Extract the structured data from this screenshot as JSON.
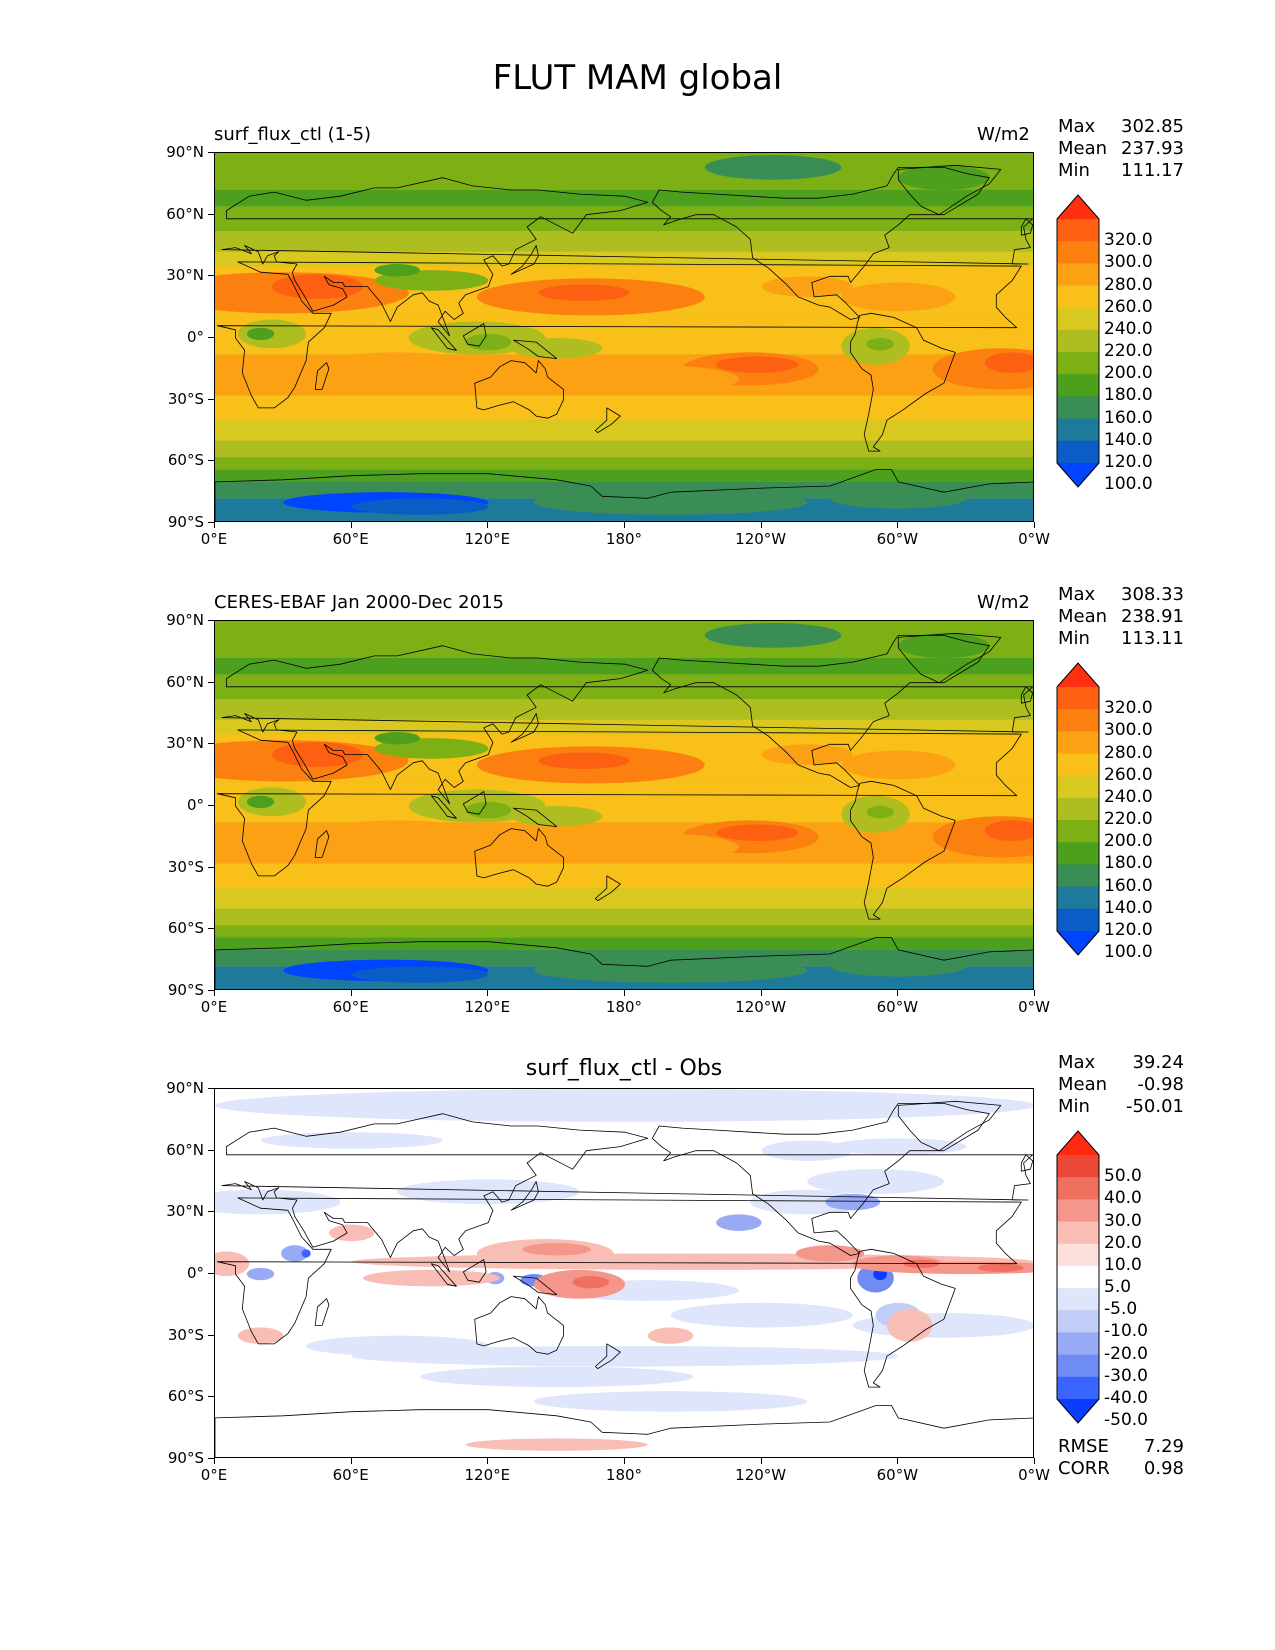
{
  "title": "FLUT MAM global",
  "panels": [
    {
      "left_title": "surf_flux_ctl (1-5)",
      "center_title": "",
      "units": "W/m2",
      "stats": [
        {
          "label": "Max",
          "value": "302.85"
        },
        {
          "label": "Mean",
          "value": "237.93"
        },
        {
          "label": "Min",
          "value": "111.17"
        }
      ],
      "colorbar_type": "abs",
      "colorbar_labels": [
        "320.0",
        "300.0",
        "280.0",
        "260.0",
        "240.0",
        "220.0",
        "200.0",
        "180.0",
        "160.0",
        "140.0",
        "120.0",
        "100.0"
      ],
      "extra_stats": []
    },
    {
      "left_title": "CERES-EBAF Jan 2000-Dec 2015",
      "center_title": "",
      "units": "W/m2",
      "stats": [
        {
          "label": "Max",
          "value": "308.33"
        },
        {
          "label": "Mean",
          "value": "238.91"
        },
        {
          "label": "Min",
          "value": "113.11"
        }
      ],
      "colorbar_type": "abs",
      "colorbar_labels": [
        "320.0",
        "300.0",
        "280.0",
        "260.0",
        "240.0",
        "220.0",
        "200.0",
        "180.0",
        "160.0",
        "140.0",
        "120.0",
        "100.0"
      ],
      "extra_stats": []
    },
    {
      "left_title": "",
      "center_title": "surf_flux_ctl - Obs",
      "units": "",
      "stats": [
        {
          "label": "Max",
          "value": "39.24"
        },
        {
          "label": "Mean",
          "value": "-0.98"
        },
        {
          "label": "Min",
          "value": "-50.01"
        }
      ],
      "colorbar_type": "diff",
      "colorbar_labels": [
        "50.0",
        "40.0",
        "30.0",
        "20.0",
        "10.0",
        "5.0",
        "-5.0",
        "-10.0",
        "-20.0",
        "-30.0",
        "-40.0",
        "-50.0"
      ],
      "extra_stats": [
        {
          "label": "RMSE",
          "value": "7.29"
        },
        {
          "label": "CORR",
          "value": "0.98"
        }
      ]
    }
  ],
  "lat_ticks": [
    "90°N",
    "60°N",
    "30°N",
    "0°",
    "30°S",
    "60°S",
    "90°S"
  ],
  "lon_ticks": [
    "0°E",
    "60°E",
    "120°E",
    "180°",
    "120°W",
    "60°W",
    "0°W"
  ],
  "colors": {
    "abs_scale": [
      "#0044ff",
      "#0a5cc7",
      "#1e7a9a",
      "#3a8e55",
      "#4ca01e",
      "#7cb014",
      "#aebe20",
      "#d8c820",
      "#f8c018",
      "#fca014",
      "#fc8010",
      "#fc6010",
      "#ff3010"
    ],
    "diff_scale": [
      "#0b3cff",
      "#3a64ff",
      "#6f8cf5",
      "#98aaf5",
      "#c1ccf7",
      "#dfe6fb",
      "#ffffff",
      "#fde0dc",
      "#f8bdb4",
      "#f4968a",
      "#f07060",
      "#ec4838",
      "#ff2a10"
    ]
  }
}
